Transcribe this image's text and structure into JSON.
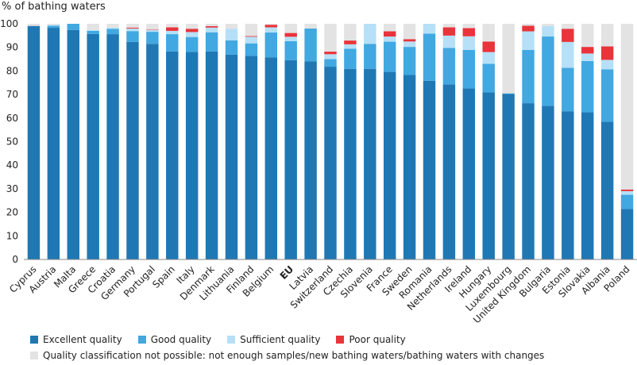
{
  "chart_data": {
    "type": "bar",
    "stacked": true,
    "title": "",
    "ylabel": "% of bathing waters",
    "xlabel": "",
    "ylim": [
      0,
      100
    ],
    "yticks": [
      0,
      10,
      20,
      30,
      40,
      50,
      60,
      70,
      80,
      90,
      100
    ],
    "grid": false,
    "legend_position": "bottom",
    "categories": [
      "Cyprus",
      "Austria",
      "Malta",
      "Greece",
      "Croatia",
      "Germany",
      "Portugal",
      "Spain",
      "Italy",
      "Denmark",
      "Lithuania",
      "Finland",
      "Belgium",
      "EU",
      "Latvia",
      "Switzerland",
      "Czechia",
      "Slovenia",
      "France",
      "Sweden",
      "Romania",
      "Netherlands",
      "Ireland",
      "Hungary",
      "Luxembourg",
      "United Kingdom",
      "Bulgaria",
      "Estonia",
      "Slovakia",
      "Albania",
      "Poland"
    ],
    "highlight_category": "EU",
    "series": [
      {
        "name": "Excellent quality",
        "color": "#1f78b4",
        "values": [
          99.1,
          98.3,
          97.4,
          95.7,
          95.6,
          92.3,
          91.5,
          88.3,
          88.1,
          88.3,
          86.9,
          86.4,
          85.8,
          84.6,
          84.0,
          81.8,
          80.9,
          80.9,
          79.6,
          78.3,
          75.8,
          74.3,
          72.6,
          70.9,
          70.3,
          66.3,
          65.2,
          62.9,
          62.5,
          58.4,
          21.4
        ]
      },
      {
        "name": "Good quality",
        "color": "#41a8e1",
        "values": [
          0.0,
          0.9,
          2.6,
          1.3,
          2.3,
          4.6,
          5.1,
          7.3,
          6.3,
          8.1,
          6.1,
          5.3,
          10.5,
          8.0,
          14.0,
          3.2,
          8.5,
          10.6,
          12.8,
          11.9,
          20.0,
          15.5,
          16.3,
          12.1,
          0.2,
          22.6,
          29.4,
          18.4,
          21.7,
          22.3,
          6.1
        ]
      },
      {
        "name": "Sufficient quality",
        "color": "#b5e0f7",
        "values": [
          0.0,
          0.3,
          0.0,
          0.4,
          0.4,
          1.1,
          0.8,
          1.4,
          2.1,
          2.0,
          4.9,
          2.8,
          2.2,
          1.9,
          0.0,
          2.1,
          1.9,
          8.5,
          2.2,
          2.3,
          4.2,
          5.2,
          5.8,
          5.0,
          0.0,
          7.9,
          4.4,
          11.0,
          3.2,
          4.0,
          1.5
        ]
      },
      {
        "name": "Poor quality",
        "color": "#e8343a",
        "values": [
          0.0,
          0.0,
          0.0,
          0.0,
          0.0,
          0.4,
          0.2,
          1.5,
          1.4,
          0.6,
          0.0,
          0.3,
          1.1,
          1.6,
          0.0,
          1.1,
          1.6,
          0.0,
          2.2,
          1.0,
          0.0,
          3.5,
          3.5,
          4.5,
          0.0,
          2.4,
          0.0,
          5.6,
          2.8,
          5.7,
          0.7
        ]
      },
      {
        "name": "Quality classification not possible: not enough samples/new bathing waters/bathing waters with changes",
        "color": "#e3e3e3",
        "values": [
          0.9,
          0.5,
          0.0,
          2.6,
          1.7,
          1.6,
          2.4,
          1.5,
          2.1,
          1.0,
          2.1,
          5.2,
          0.4,
          3.9,
          2.0,
          11.8,
          7.1,
          0.0,
          3.2,
          6.5,
          0.0,
          1.5,
          1.8,
          7.5,
          29.5,
          0.8,
          1.0,
          2.1,
          9.8,
          9.6,
          70.3
        ]
      }
    ]
  }
}
